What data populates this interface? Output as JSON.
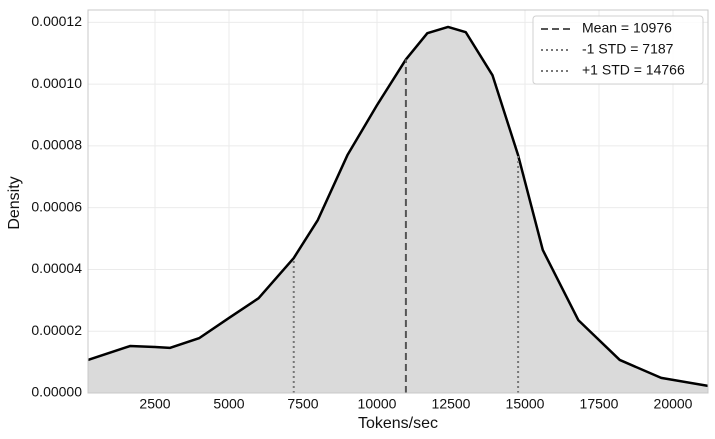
{
  "chart_data": {
    "type": "area",
    "xlabel": "Tokens/sec",
    "ylabel": "Density",
    "x": [
      236,
      1655,
      2500,
      3000,
      4000,
      5000,
      6000,
      7187,
      8000,
      9000,
      10000,
      10976,
      11700,
      12400,
      13000,
      13900,
      14766,
      15600,
      16800,
      18200,
      19600,
      21182
    ],
    "values": [
      1.07e-05,
      1.52e-05,
      1.49e-05,
      1.46e-05,
      1.78e-05,
      2.43e-05,
      3.07e-05,
      4.37e-05,
      5.6e-05,
      7.7e-05,
      9.32e-05,
      0.000108,
      0.0001165,
      0.0001185,
      0.0001168,
      0.0001029,
      7.7e-05,
      4.63e-05,
      2.36e-05,
      1.07e-05,
      4.9e-06,
      2.3e-06
    ],
    "color": "#000000",
    "fill": "#dadada",
    "vlines": [
      {
        "name": "Mean = 10976",
        "x": 10976,
        "style": "dashed",
        "color": "#555555"
      },
      {
        "name": "-1 STD = 7187",
        "x": 7187,
        "style": "dotted",
        "color": "#777777"
      },
      {
        "name": "+1 STD = 14766",
        "x": 14766,
        "style": "dotted",
        "color": "#777777"
      }
    ],
    "xlim": [
      236,
      21182
    ],
    "ylim": [
      0,
      0.000124
    ],
    "xticks": [
      2500,
      5000,
      7500,
      10000,
      12500,
      15000,
      17500,
      20000
    ],
    "yticks": [
      {
        "value": 0,
        "label": "0.00000"
      },
      {
        "value": 2e-05,
        "label": "0.00002"
      },
      {
        "value": 4e-05,
        "label": "0.00004"
      },
      {
        "value": 6e-05,
        "label": "0.00006"
      },
      {
        "value": 8e-05,
        "label": "0.00008"
      },
      {
        "value": 0.0001,
        "label": "0.00010"
      },
      {
        "value": 0.00012,
        "label": "0.00012"
      }
    ],
    "grid": true,
    "legend": "upper right"
  }
}
